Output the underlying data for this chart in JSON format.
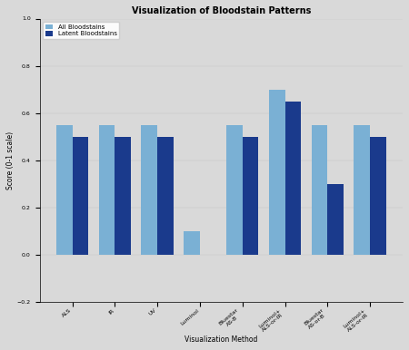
{
  "title": "Visualization of Bloodstain Patterns",
  "xlabel": "Visualization Method",
  "ylabel": "Score (0-1 scale)",
  "categories": [
    "ALS",
    "IR",
    "UV",
    "Luminol",
    "Bluestar\nAS-B",
    "Luminol+\nALS-or-IR",
    "Bluestar\nAS-or-B",
    "Luminol+\nALS-or-IR"
  ],
  "all_bloodstains": [
    0.55,
    0.55,
    0.55,
    0.1,
    0.55,
    0.7,
    0.55,
    0.55
  ],
  "latent_bloodstains": [
    0.5,
    0.5,
    0.5,
    0.0,
    0.5,
    0.65,
    0.3,
    0.5
  ],
  "color_all": "#7ab0d4",
  "color_latent": "#1a3a8c",
  "ylim_min": -0.2,
  "ylim_max": 1.0,
  "yticks": [
    -0.2,
    0.0,
    0.2,
    0.4,
    0.6,
    0.8,
    1.0
  ],
  "legend_all": "All Bloodstains",
  "legend_latent": "Latent Bloodstains",
  "background_color": "#d9d9d9",
  "plot_bg": "#d9d9d9",
  "title_fontsize": 7,
  "label_fontsize": 5.5,
  "tick_fontsize": 4.5,
  "legend_fontsize": 5
}
